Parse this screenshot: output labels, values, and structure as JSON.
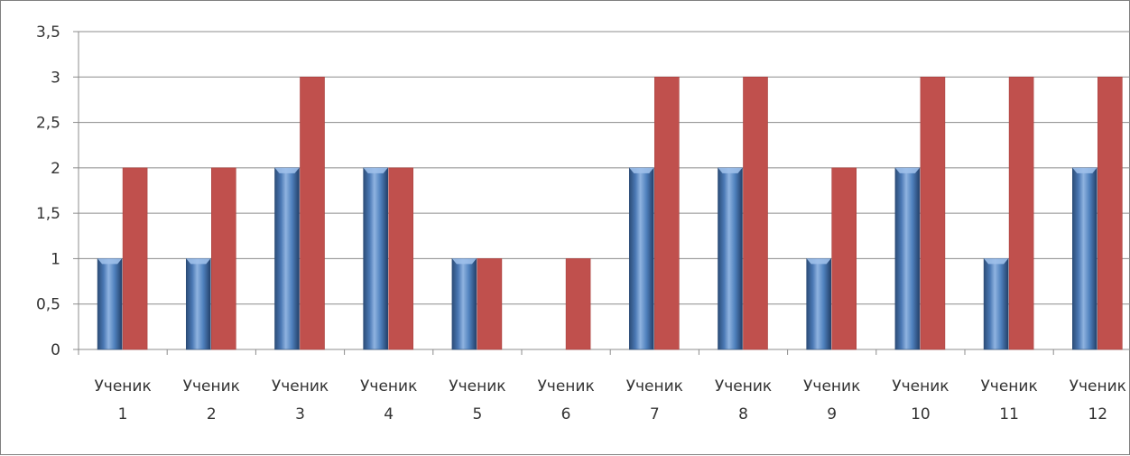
{
  "chart_data": {
    "type": "bar",
    "categories": [
      [
        "Ученик",
        "1"
      ],
      [
        "Ученик",
        "2"
      ],
      [
        "Ученик",
        "3"
      ],
      [
        "Ученик",
        "4"
      ],
      [
        "Ученик",
        "5"
      ],
      [
        "Ученик",
        "6"
      ],
      [
        "Ученик",
        "7"
      ],
      [
        "Ученик",
        "8"
      ],
      [
        "Ученик",
        "9"
      ],
      [
        "Ученик",
        "10"
      ],
      [
        "Ученик",
        "11"
      ],
      [
        "Ученик",
        "12"
      ]
    ],
    "series": [
      {
        "values": [
          1,
          1,
          2,
          2,
          1,
          0,
          2,
          2,
          1,
          2,
          1,
          2
        ],
        "color": "#4f81bd"
      },
      {
        "values": [
          2,
          2,
          3,
          2,
          1,
          1,
          3,
          3,
          2,
          3,
          3,
          3
        ],
        "color": "#c0504d"
      }
    ],
    "y_ticks": [
      "0",
      "0,5",
      "1",
      "1,5",
      "2",
      "2,5",
      "3",
      "3,5"
    ],
    "ylim": [
      0,
      3.5
    ],
    "grid": true,
    "legend": "none",
    "title": "",
    "xlabel": "",
    "ylabel": ""
  }
}
